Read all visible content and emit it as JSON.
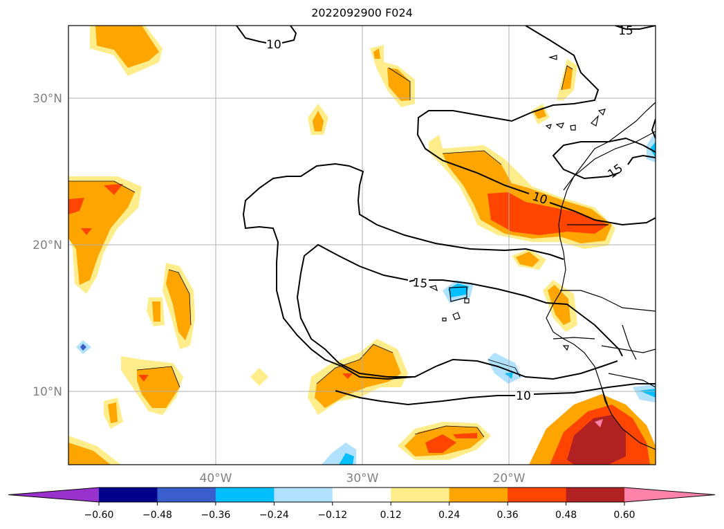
{
  "title": "2022092900 F024",
  "map": {
    "lat_labels": [
      "30°N",
      "20°N",
      "10°N"
    ],
    "lon_labels": [
      "40°W",
      "30°W",
      "20°W"
    ],
    "contour_labels": [
      "10",
      "15",
      "15",
      "15",
      "10",
      "10"
    ]
  },
  "colorbar": {
    "ticks": [
      "−0.60",
      "−0.48",
      "−0.36",
      "−0.24",
      "−0.12",
      "0.12",
      "0.24",
      "0.36",
      "0.48",
      "0.60"
    ],
    "colors": [
      "#9932cc",
      "#00008b",
      "#3a5fcd",
      "#00bfff",
      "#b0e2ff",
      "#ffffff",
      "#ffec8b",
      "#ffa500",
      "#ff4500",
      "#b22222",
      "#ff82ab"
    ]
  }
}
